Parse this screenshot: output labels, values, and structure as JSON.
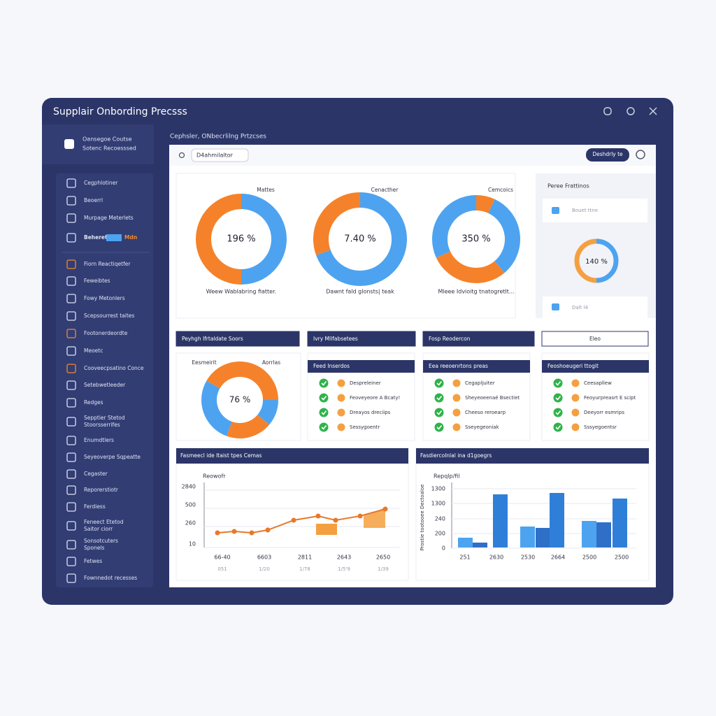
{
  "window": {
    "title": "Supplair Onbording Precsss"
  },
  "sidebar": {
    "account": [
      "Oansegoe Coutse",
      "Sotenc Recoesssed"
    ],
    "nav_top": [
      "Cegphlotiner",
      "Beoerrl",
      "Murpage Meterlets",
      "Beheret"
    ],
    "badge": "Mdn",
    "nav": [
      "Fiorn Reactiqetfer",
      "Feweibtes",
      "Fowy Metonlers",
      "Scepsourrest taites",
      "Footonerdeordte",
      "Meoetc",
      "Cooveecpsatino Conce",
      "Setebwetleeder",
      "Redges",
      [
        "Sepptier Stetod",
        "Stoorsserrifes"
      ],
      "Enumdtlers",
      "Seyeoverpe Sqpeatte",
      "Cegaster",
      "Reporerstiotr",
      "Ferdiess",
      [
        "Feneect Etetod",
        "Saitor ciorr"
      ],
      [
        "Sonsotcuters",
        "Sponels"
      ],
      "Fetwes",
      "Fownnedot recesses"
    ]
  },
  "breadcrumb": "Cephsler, ONbecrlilng Prtzcses",
  "toolbar": {
    "search": "D4ahmilaltor",
    "button": "Deshdrly te"
  },
  "donuts": [
    {
      "label": "Mattes",
      "percent": "196 %",
      "caption": "Weew Wablabring fiatter."
    },
    {
      "label": "Cenacther",
      "percent": "7.40 %",
      "caption": "Dawnt fald glonsts| teak"
    },
    {
      "label": "Cemcoics",
      "percent": "350 %",
      "caption": "Mleee Idvioitg tnatogretlt..."
    }
  ],
  "side_panel": {
    "title": "Peree Frattinos",
    "item1": "Bouet ttne",
    "percent": "140 %",
    "item2": "Dalt l4"
  },
  "section_headers": [
    "Peyhgh Ifrtaldate Soors",
    "Ivry Mllfabsetees",
    "Fosp Reodercon",
    "Eleo"
  ],
  "donut_small": {
    "left": "Eesmeirit",
    "right": "Aorrlas",
    "percent": "76 %"
  },
  "checklists": [
    {
      "title": "Feed Inserdos",
      "items": [
        "Despreleiner",
        "Feoveyeore A Bcaty!",
        "Dreayos dreciips",
        "Sessygoentr"
      ]
    },
    {
      "title": "Eea reeoenrtons preas",
      "items": [
        "Cegapljuiter",
        "Sheyeoeenaé Bsectiet",
        "Cheeso reroearp",
        "Sseyegeoniak"
      ]
    },
    {
      "title": "Feoshoeugeri ttogit",
      "items": [
        "Ceesapllew",
        "Feoyurpreasrt E scipt",
        "Deeyorr esmrips",
        "Sssyegoentsr"
      ]
    }
  ],
  "line_chart": {
    "header": "Fasmeecl ide Itaist tpes Cemas",
    "title": "Reowofr",
    "yticks": [
      "2840",
      "500",
      "260",
      "10"
    ],
    "xticks": [
      "66-40",
      "6603",
      "2811",
      "2643",
      "2650"
    ],
    "xsub": [
      "051",
      "1/20",
      "1/78",
      "1/5'9",
      "1/39"
    ]
  },
  "bar_chart": {
    "header": "Fasdiercolnlal ina d1goegrs",
    "title": "Repqlp/fil",
    "ylabel": "Prostie tootooee Dectoaloe",
    "yticks": [
      "1300",
      "1300",
      "240",
      "200",
      "0"
    ],
    "xticks": [
      "251",
      "2630",
      "2530",
      "2664",
      "2500",
      "2500"
    ]
  }
}
